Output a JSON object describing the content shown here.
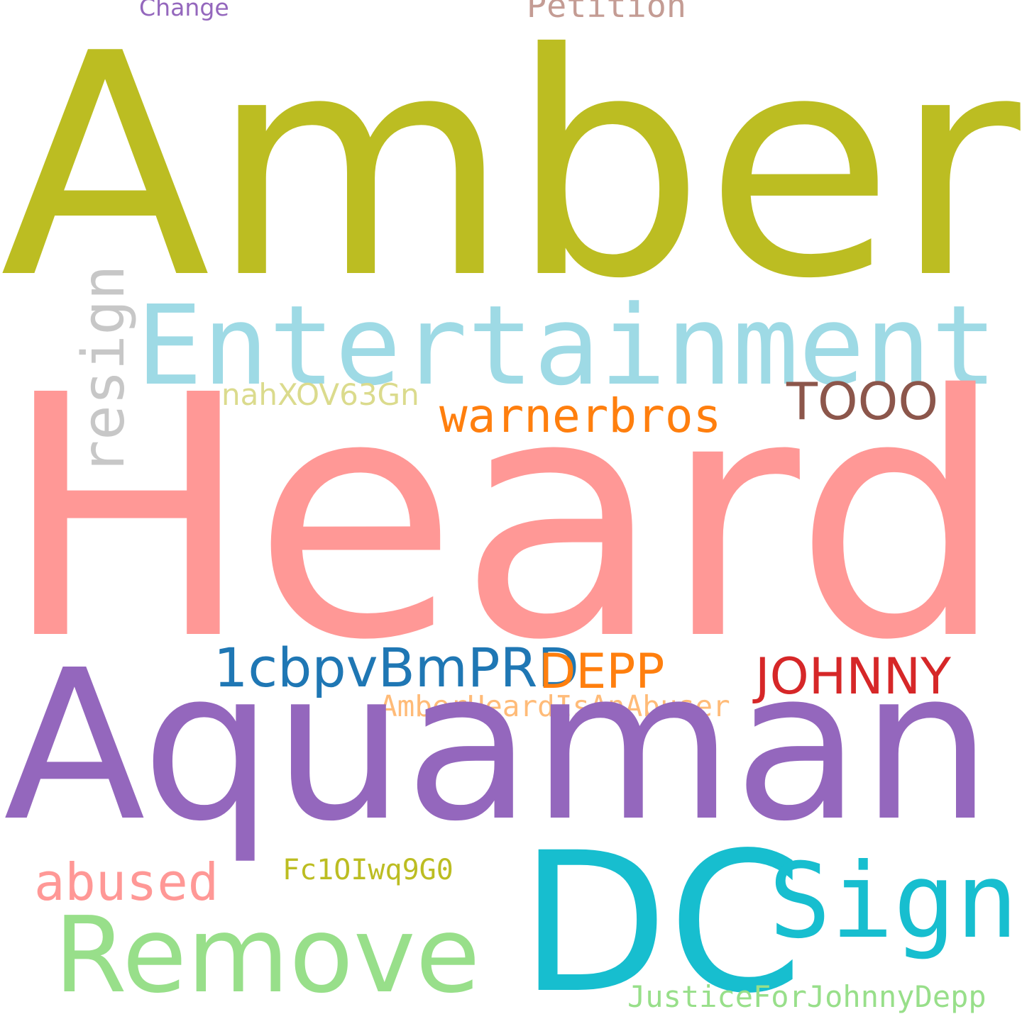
{
  "cloud": {
    "background": "#ffffff",
    "words": {
      "amber": {
        "text": "Amber",
        "color": "#bcbd22"
      },
      "heard": {
        "text": "Heard",
        "color": "#ff9896"
      },
      "aquaman": {
        "text": "Aquaman",
        "color": "#9467bd"
      },
      "entertainment": {
        "text": "Entertainment",
        "color": "#9edae5"
      },
      "petition": {
        "text": "Petition",
        "color": "#c49c94"
      },
      "change": {
        "text": "Change",
        "color": "#9467bd"
      },
      "dc": {
        "text": "DC",
        "color": "#17becf"
      },
      "remove": {
        "text": "Remove",
        "color": "#98df8a"
      },
      "sign": {
        "text": "Sign",
        "color": "#17becf"
      },
      "resign": {
        "text": "resign",
        "color": "#c7c7c7"
      },
      "warnerbros": {
        "text": "warnerbros",
        "color": "#ff7f0e"
      },
      "tooo": {
        "text": "TOOO",
        "color": "#8c564b"
      },
      "nah": {
        "text": "nahXOV63Gn",
        "color": "#dbdb8d"
      },
      "cbpv": {
        "text": "1cbpvBmPRD",
        "color": "#1f77b4"
      },
      "depp": {
        "text": "DEPP",
        "color": "#ff7f0e"
      },
      "johnny": {
        "text": "JOHNNY",
        "color": "#d62728"
      },
      "abuser": {
        "text": "AmberHeardIsAnAbuser",
        "color": "#ffbb78"
      },
      "abused": {
        "text": "abused",
        "color": "#ff9896"
      },
      "fc": {
        "text": "Fc1OIwq9G0",
        "color": "#bcbd22"
      },
      "justice": {
        "text": "JusticeForJohnnyDepp",
        "color": "#98df8a"
      }
    }
  }
}
